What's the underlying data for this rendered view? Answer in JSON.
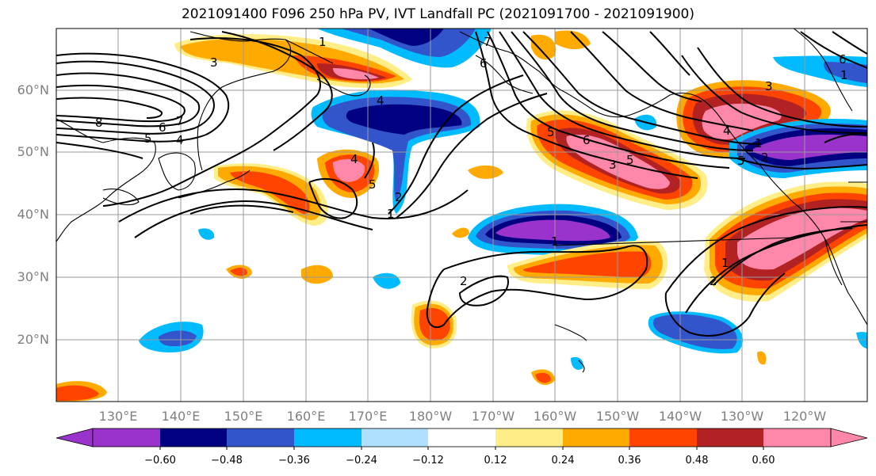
{
  "title": "2021091400 F096 250 hPa PV, IVT Landfall PC (2021091700 - 2021091900)",
  "latitude_labels": [
    "60°N",
    "50°N",
    "40°N",
    "30°N",
    "20°N"
  ],
  "longitude_labels": [
    "130°E",
    "140°E",
    "150°E",
    "160°E",
    "170°E",
    "180°W",
    "170°W",
    "160°W",
    "150°W",
    "140°W",
    "130°W",
    "120°W"
  ],
  "colorbar": {
    "tick_labels": [
      "−0.60",
      "−0.48",
      "−0.36",
      "−0.24",
      "−0.12",
      "0.12",
      "0.24",
      "0.36",
      "0.48",
      "0.60"
    ],
    "colors": [
      "#9933cc",
      "#000080",
      "#3355cc",
      "#00bbff",
      "#b0e0ff",
      "#ffffff",
      "#ffee88",
      "#ffaa00",
      "#ff4400",
      "#b22222",
      "#ff88aa"
    ],
    "extend": "both"
  },
  "contour_labels": [
    "3",
    "1",
    "8",
    "7",
    "6",
    "4",
    "5",
    "6",
    "7",
    "4",
    "5",
    "2",
    "1",
    "4",
    "5",
    "6",
    "3",
    "5",
    "1",
    "2",
    "1",
    "3",
    "4",
    "5",
    "1",
    "2",
    "6",
    "2",
    "1"
  ],
  "colors": {
    "grid": "#999999",
    "axis_label": "#7f7f7f",
    "contour": "#000000"
  }
}
